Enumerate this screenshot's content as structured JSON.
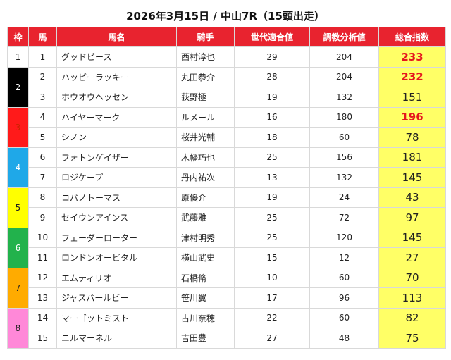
{
  "title": "2026年3月15日 / 中山7R（15頭出走）",
  "headers": [
    "枠",
    "馬",
    "馬名",
    "騎手",
    "世代適合値",
    "調教分析値",
    "総合指数"
  ],
  "frame_colors": {
    "1": {
      "bg": "#ffffff",
      "fg": "#222222"
    },
    "2": {
      "bg": "#000000",
      "fg": "#ffffff"
    },
    "3": {
      "bg": "#ff1a1a",
      "fg": "#cc2200"
    },
    "4": {
      "bg": "#1fa8e8",
      "fg": "#ffffff"
    },
    "5": {
      "bg": "#ffff00",
      "fg": "#222222"
    },
    "6": {
      "bg": "#22b24c",
      "fg": "#ffffff"
    },
    "7": {
      "bg": "#ffab00",
      "fg": "#222222"
    },
    "8": {
      "bg": "#ff88d8",
      "fg": "#222222"
    }
  },
  "rows": [
    {
      "frame": "1",
      "num": "1",
      "name": "グッドピース",
      "jockey": "西村淳也",
      "gen": "29",
      "train": "204",
      "score": "233",
      "highlight": true
    },
    {
      "frame": "2",
      "num": "2",
      "name": "ハッピーラッキー",
      "jockey": "丸田恭介",
      "gen": "28",
      "train": "204",
      "score": "232",
      "highlight": true
    },
    {
      "frame": "2",
      "num": "3",
      "name": "ホウオウヘッセン",
      "jockey": "荻野極",
      "gen": "19",
      "train": "132",
      "score": "151",
      "highlight": false
    },
    {
      "frame": "3",
      "num": "4",
      "name": "ハイヤーマーク",
      "jockey": "ルメール",
      "gen": "16",
      "train": "180",
      "score": "196",
      "highlight": true
    },
    {
      "frame": "3",
      "num": "5",
      "name": "シノン",
      "jockey": "桜井光輔",
      "gen": "18",
      "train": "60",
      "score": "78",
      "highlight": false
    },
    {
      "frame": "4",
      "num": "6",
      "name": "フォトンゲイザー",
      "jockey": "木幡巧也",
      "gen": "25",
      "train": "156",
      "score": "181",
      "highlight": false
    },
    {
      "frame": "4",
      "num": "7",
      "name": "ロジケープ",
      "jockey": "丹内祐次",
      "gen": "13",
      "train": "132",
      "score": "145",
      "highlight": false
    },
    {
      "frame": "5",
      "num": "8",
      "name": "コパノトーマス",
      "jockey": "原優介",
      "gen": "19",
      "train": "24",
      "score": "43",
      "highlight": false
    },
    {
      "frame": "5",
      "num": "9",
      "name": "セイウンアインス",
      "jockey": "武藤雅",
      "gen": "25",
      "train": "72",
      "score": "97",
      "highlight": false
    },
    {
      "frame": "6",
      "num": "10",
      "name": "フェーダーローター",
      "jockey": "津村明秀",
      "gen": "25",
      "train": "120",
      "score": "145",
      "highlight": false
    },
    {
      "frame": "6",
      "num": "11",
      "name": "ロンドンオービタル",
      "jockey": "横山武史",
      "gen": "15",
      "train": "12",
      "score": "27",
      "highlight": false
    },
    {
      "frame": "7",
      "num": "12",
      "name": "エムティリオ",
      "jockey": "石橋脩",
      "gen": "10",
      "train": "60",
      "score": "70",
      "highlight": false
    },
    {
      "frame": "7",
      "num": "13",
      "name": "ジャスパールビー",
      "jockey": "笹川翼",
      "gen": "17",
      "train": "96",
      "score": "113",
      "highlight": false
    },
    {
      "frame": "8",
      "num": "14",
      "name": "マーゴットミスト",
      "jockey": "古川奈穂",
      "gen": "22",
      "train": "60",
      "score": "82",
      "highlight": false
    },
    {
      "frame": "8",
      "num": "15",
      "name": "ニルマーネル",
      "jockey": "吉田豊",
      "gen": "27",
      "train": "48",
      "score": "75",
      "highlight": false
    }
  ]
}
